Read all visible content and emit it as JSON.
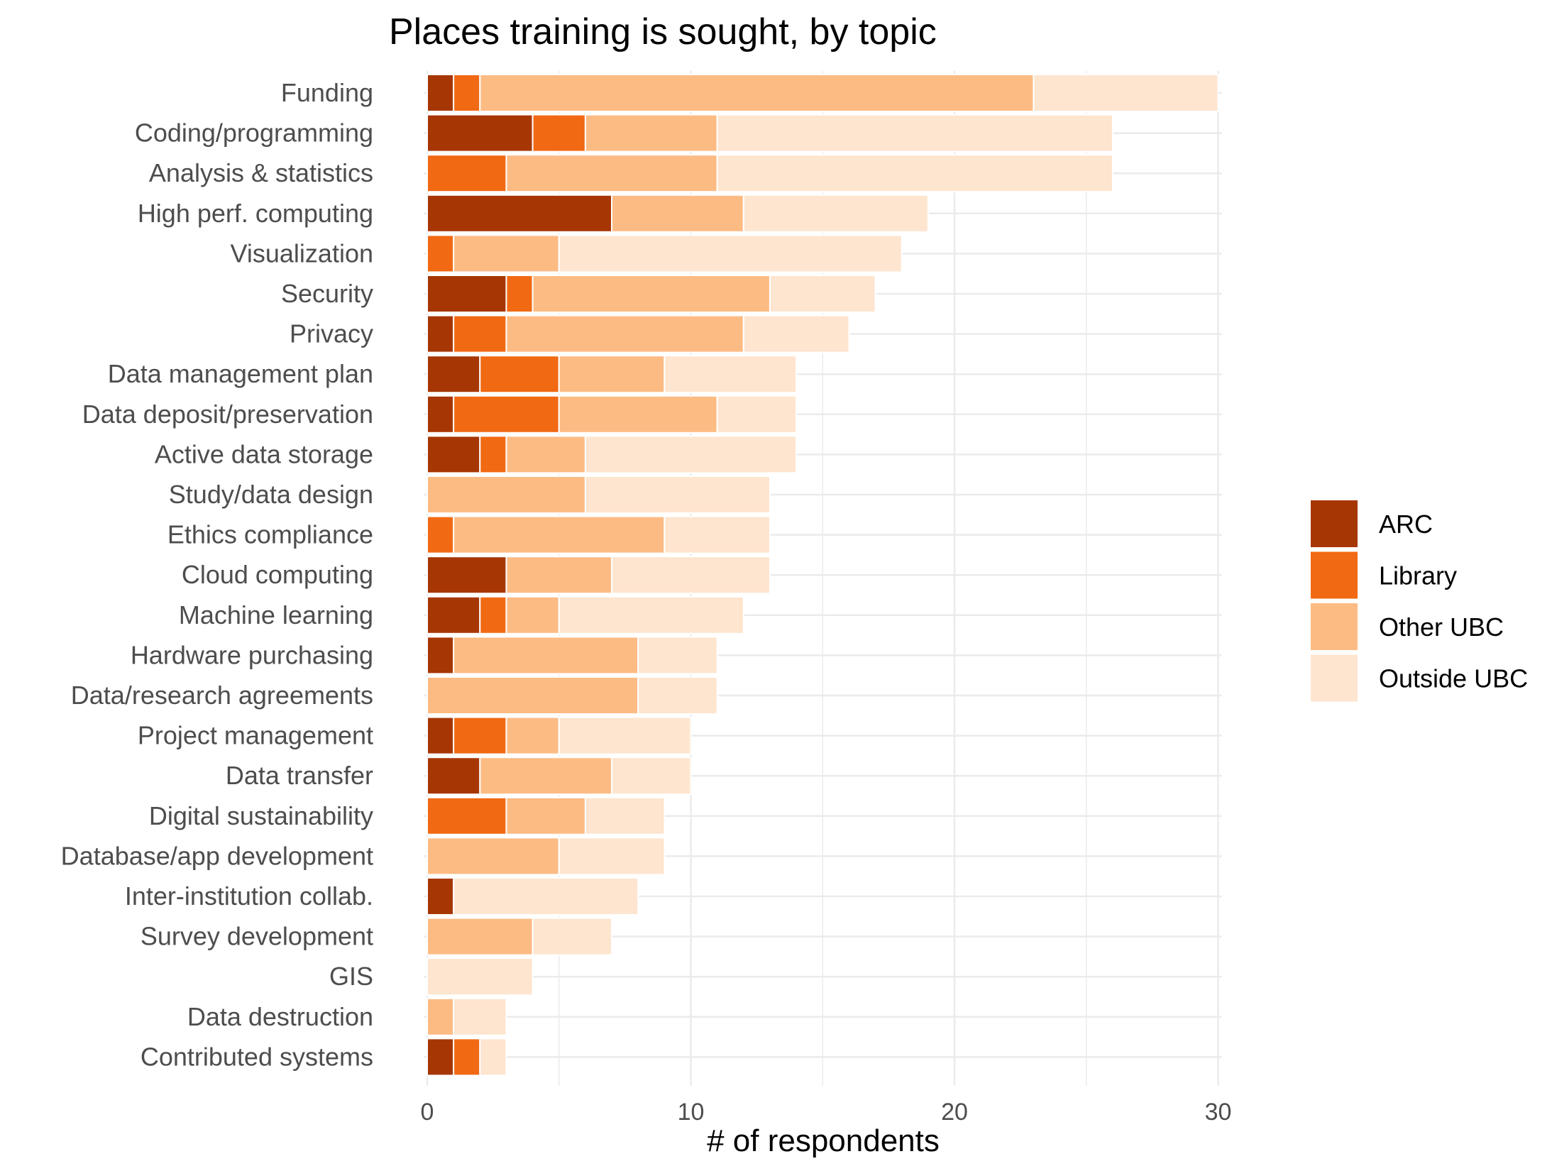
{
  "chart_data": {
    "type": "bar",
    "orientation": "horizontal",
    "stacked": true,
    "title": "Places training is sought, by topic",
    "xlabel": "# of respondents",
    "ylabel": "",
    "xlim": [
      0,
      30
    ],
    "xticks": [
      0,
      10,
      20,
      30
    ],
    "grid": true,
    "legend_position": "right",
    "categories": [
      "Funding",
      "Coding/programming",
      "Analysis & statistics",
      "High perf. computing",
      "Visualization",
      "Security",
      "Privacy",
      "Data management plan",
      "Data deposit/preservation",
      "Active data storage",
      "Study/data design",
      "Ethics compliance",
      "Cloud computing",
      "Machine learning",
      "Hardware purchasing",
      "Data/research agreements",
      "Project management",
      "Data transfer",
      "Digital sustainability",
      "Database/app development",
      "Inter-institution collab.",
      "Survey development",
      "GIS",
      "Data destruction",
      "Contributed systems"
    ],
    "series": [
      {
        "name": "ARC",
        "color": "#a63603",
        "values": [
          1,
          4,
          0,
          7,
          0,
          3,
          1,
          2,
          1,
          2,
          0,
          0,
          3,
          2,
          1,
          0,
          1,
          2,
          0,
          0,
          1,
          0,
          0,
          0,
          1
        ]
      },
      {
        "name": "Library",
        "color": "#f16913",
        "values": [
          1,
          2,
          3,
          0,
          1,
          1,
          2,
          3,
          4,
          1,
          0,
          1,
          0,
          1,
          0,
          0,
          2,
          0,
          3,
          0,
          0,
          0,
          0,
          0,
          1
        ]
      },
      {
        "name": "Other UBC",
        "color": "#fdbb84",
        "values": [
          21,
          5,
          8,
          5,
          4,
          9,
          9,
          4,
          6,
          3,
          6,
          8,
          4,
          2,
          7,
          8,
          2,
          5,
          3,
          5,
          0,
          4,
          0,
          1,
          0
        ]
      },
      {
        "name": "Outside UBC",
        "color": "#fee5cf",
        "values": [
          7,
          15,
          15,
          7,
          13,
          4,
          4,
          5,
          3,
          8,
          7,
          4,
          6,
          7,
          3,
          3,
          5,
          3,
          3,
          4,
          7,
          3,
          4,
          2,
          1
        ]
      }
    ]
  }
}
